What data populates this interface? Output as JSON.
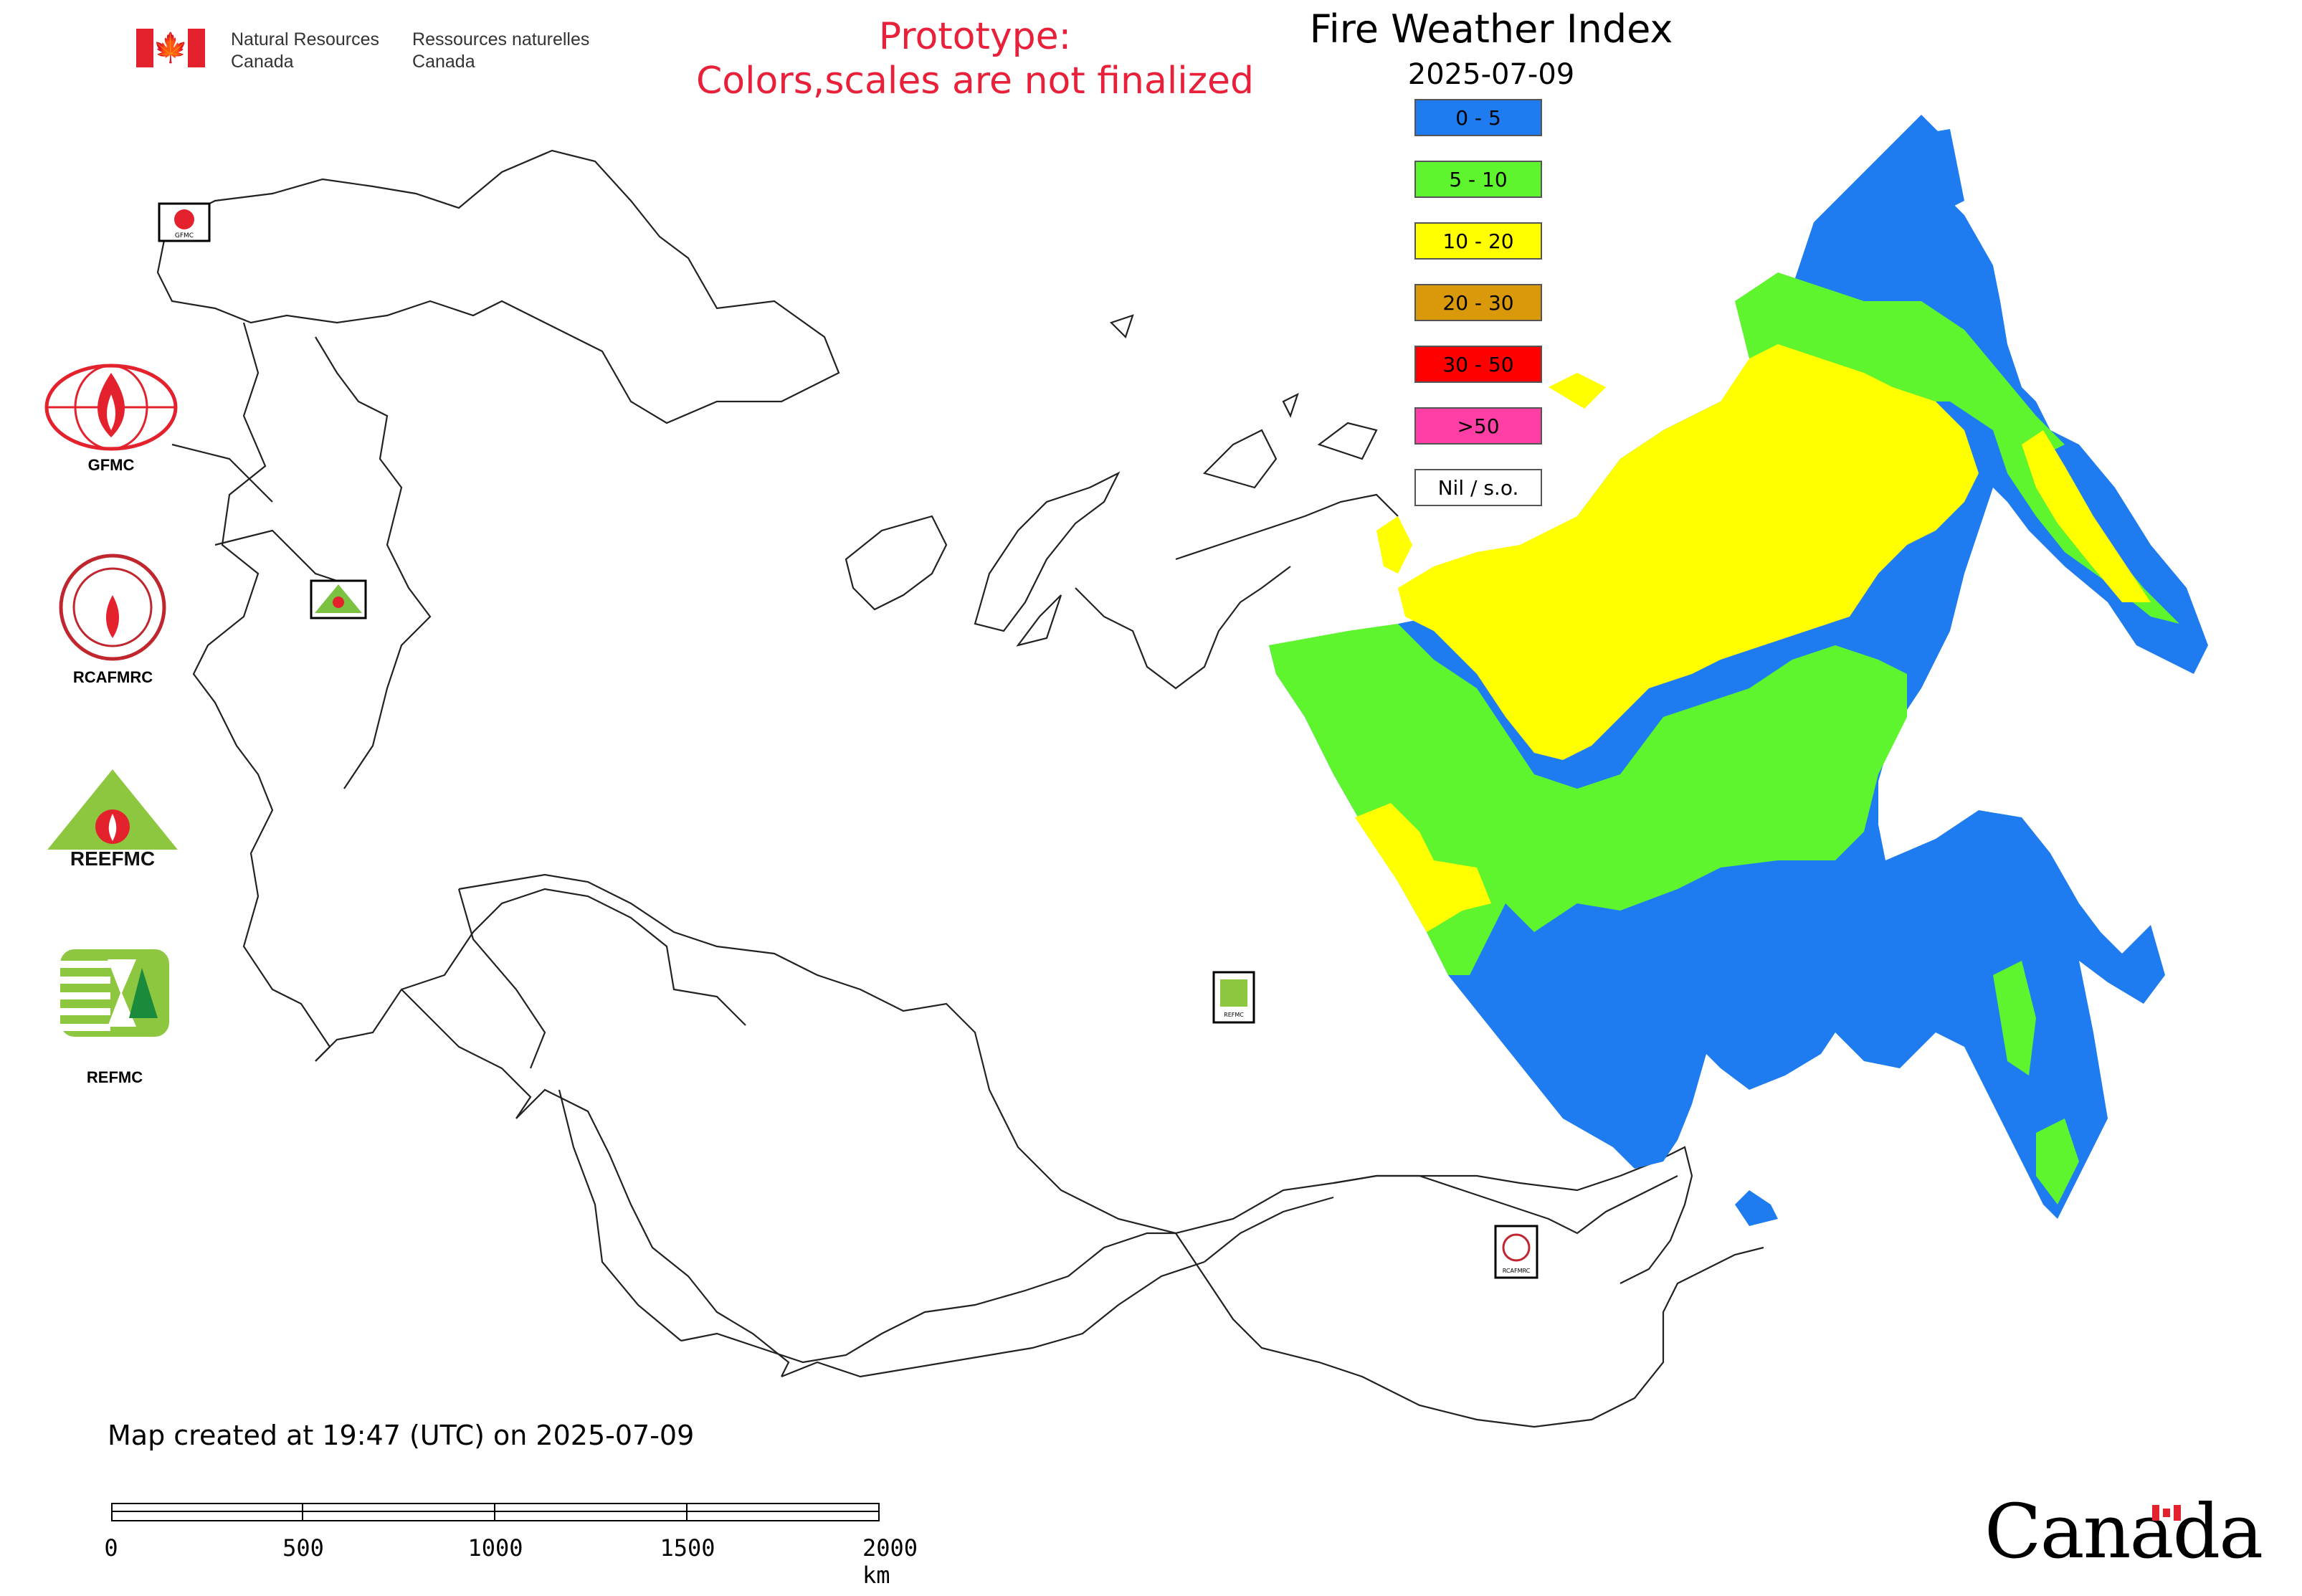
{
  "header": {
    "department_en": [
      "Natural Resources",
      "Canada"
    ],
    "department_fr": [
      "Ressources naturelles",
      "Canada"
    ],
    "prototype_note": [
      "Prototype:",
      "Colors,scales are not finalized"
    ],
    "title": "Fire Weather Index",
    "date": "2025-07-09"
  },
  "legend": {
    "items": [
      {
        "label": "0 - 5",
        "color": "#1e7cf0"
      },
      {
        "label": "5 - 10",
        "color": "#5ef52e"
      },
      {
        "label": "10 - 20",
        "color": "#ffff00"
      },
      {
        "label": "20 - 30",
        "color": "#d9990a"
      },
      {
        "label": "30 - 50",
        "color": "#ff0000"
      },
      {
        "label": ">50",
        "color": "#ff3fa5"
      },
      {
        "label": "Nil / s.o.",
        "color": "#ffffff"
      }
    ]
  },
  "logos": {
    "gfmc": "GFMC",
    "rcafmrc": "RCAFMRC",
    "reefmc_caption": "REEFMC",
    "refmc": "REFMC",
    "map_markers": [
      "GFMC",
      "REEFMC",
      "REFMC",
      "RCAFMRC"
    ]
  },
  "footer": {
    "created": "Map created at 19:47 (UTC) on 2025-07-09",
    "scale_labels": [
      "0",
      "500",
      "1000",
      "1500",
      "2000 km"
    ],
    "wordmark": "Canada"
  },
  "colors": {
    "accent_red": "#e8203a",
    "outline": "#222222"
  }
}
